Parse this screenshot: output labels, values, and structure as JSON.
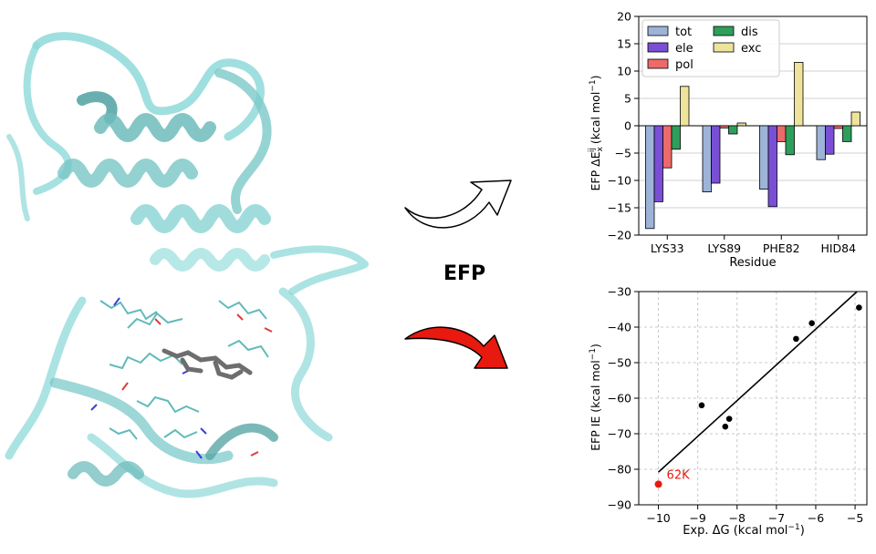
{
  "center_label": "EFP",
  "protein_image": {
    "icon": "protein-ribbon-structure",
    "ribbon_color": "#8fd9d9",
    "ligand_color": "#6e6e6e"
  },
  "arrows": [
    {
      "icon": "white-curved-arrow",
      "fill": "#ffffff"
    },
    {
      "icon": "red-curved-arrow",
      "fill": "#e8190e"
    }
  ],
  "chart_data": [
    {
      "type": "bar",
      "categories": [
        "LYS33",
        "LYS89",
        "PHE82",
        "HID84"
      ],
      "series": [
        {
          "name": "tot",
          "color": "#9db4d8",
          "values": [
            -18.8,
            -12.1,
            -11.6,
            -6.2
          ]
        },
        {
          "name": "ele",
          "color": "#7a4fd6",
          "values": [
            -13.9,
            -10.5,
            -14.8,
            -5.2
          ]
        },
        {
          "name": "pol",
          "color": "#ec6a6a",
          "values": [
            -7.7,
            -0.4,
            -2.9,
            -0.5
          ]
        },
        {
          "name": "dis",
          "color": "#2e9e5b",
          "values": [
            -4.3,
            -1.5,
            -5.3,
            -2.9
          ]
        },
        {
          "name": "exc",
          "color": "#ede39a",
          "values": [
            7.2,
            0.5,
            11.6,
            2.5
          ]
        }
      ],
      "xlabel": "Residue",
      "ylabel_prefix": "EFP ΔE",
      "ylabel_sub": "x",
      "ylabel_sup": "ij",
      "ylabel_suffix": " (kcal mol",
      "ylabel_unit_sup": "−1",
      "ylabel_end": ")",
      "ylim": [
        -20,
        20
      ],
      "yticks": [
        -20,
        -15,
        -10,
        -5,
        0,
        5,
        10,
        15,
        20
      ],
      "grid": "horizontal",
      "legend": "top-left"
    },
    {
      "type": "scatter",
      "points": [
        {
          "x": -8.9,
          "y": -62.0,
          "color": "#000000"
        },
        {
          "x": -8.3,
          "y": -68.0,
          "color": "#000000"
        },
        {
          "x": -8.2,
          "y": -65.8,
          "color": "#000000"
        },
        {
          "x": -6.5,
          "y": -43.3,
          "color": "#000000"
        },
        {
          "x": -6.1,
          "y": -38.9,
          "color": "#000000"
        },
        {
          "x": -4.9,
          "y": -34.5,
          "color": "#000000"
        },
        {
          "x": -10.0,
          "y": -84.2,
          "color": "#e8190e",
          "label": "62K"
        }
      ],
      "fit_line": {
        "x": [
          -10.0,
          -4.95
        ],
        "y": [
          -80.8,
          -30.0
        ],
        "color": "#000000"
      },
      "xlabel_main": "Exp. ΔG (kcal mol",
      "xlabel_sup": "−1",
      "xlabel_end": ")",
      "ylabel_main": "EFP IE (kcal mol",
      "ylabel_sup": "−1",
      "ylabel_end": ")",
      "xlim": [
        -10.5,
        -4.7
      ],
      "ylim": [
        -90,
        -30
      ],
      "xticks": [
        -10,
        -9,
        -8,
        -7,
        -6,
        -5
      ],
      "yticks": [
        -90,
        -80,
        -70,
        -60,
        -50,
        -40,
        -30
      ],
      "grid": "both-dashed"
    }
  ]
}
